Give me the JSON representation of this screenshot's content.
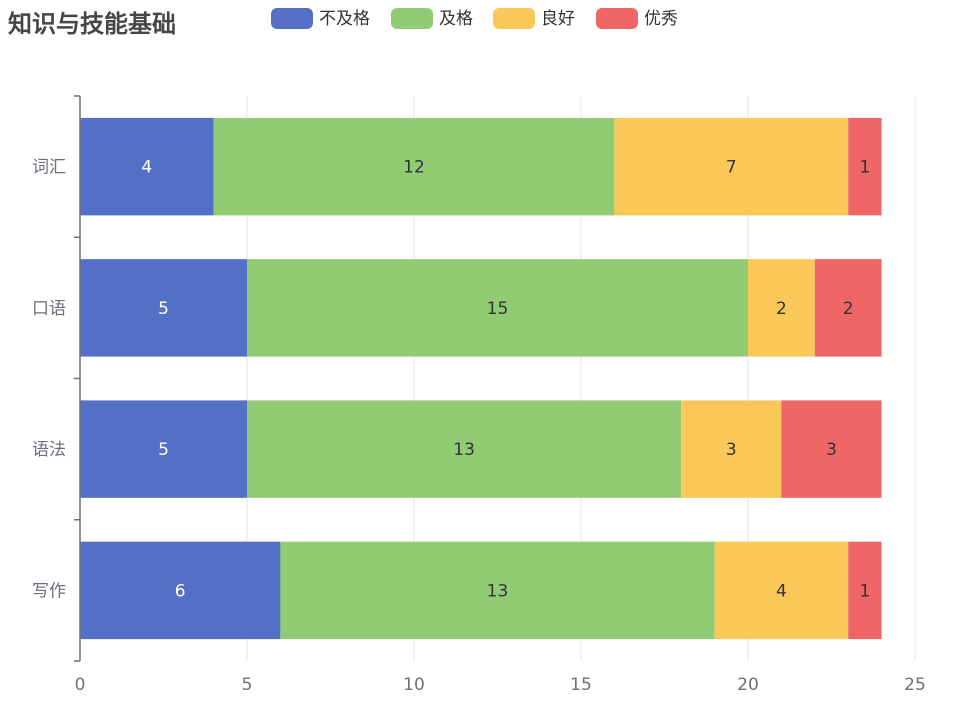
{
  "chart_data": {
    "type": "bar",
    "orientation": "horizontal",
    "stacked": true,
    "title": "知识与技能基础",
    "categories": [
      "词汇",
      "口语",
      "语法",
      "写作"
    ],
    "series": [
      {
        "name": "不及格",
        "color": "#5470c6",
        "values": [
          4,
          5,
          5,
          6
        ]
      },
      {
        "name": "及格",
        "color": "#91cc75",
        "values": [
          12,
          15,
          13,
          13
        ]
      },
      {
        "name": "良好",
        "color": "#fac858",
        "values": [
          7,
          2,
          3,
          4
        ]
      },
      {
        "name": "优秀",
        "color": "#ee6666",
        "values": [
          1,
          2,
          3,
          1
        ]
      }
    ],
    "xlim": [
      0,
      25
    ],
    "xticks": [
      "0",
      "5",
      "10",
      "15",
      "20",
      "25"
    ],
    "xlabel": "",
    "ylabel": "",
    "grid": true,
    "legend_position": "top",
    "data_labels": true
  }
}
